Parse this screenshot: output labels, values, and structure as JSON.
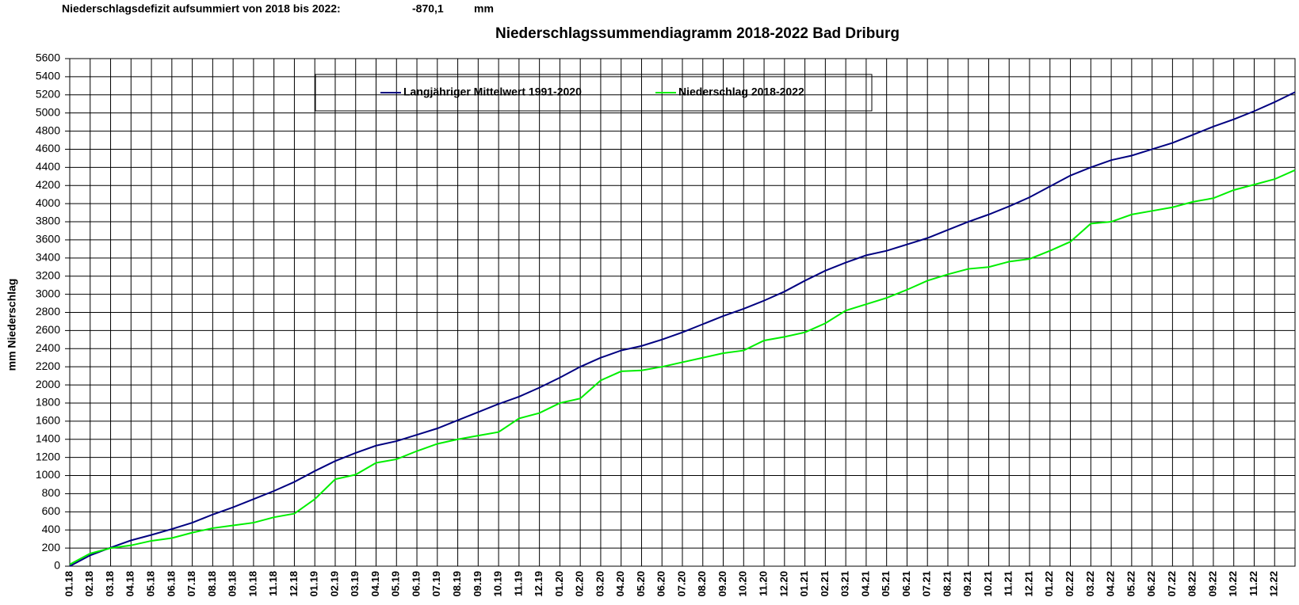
{
  "chart_data": {
    "type": "line",
    "note": {
      "text": "Niederschlagsdefizit aufsummiert von 2018 bis 2022:",
      "value": "-870,1",
      "unit": "mm"
    },
    "title": "Niederschlagssummendiagramm  2018-2022 Bad Driburg",
    "y_label": "mm Niederschlag",
    "categories": [
      "01.18",
      "02.18",
      "03.18",
      "04.18",
      "05.18",
      "06.18",
      "07.18",
      "08.18",
      "09.18",
      "10.18",
      "11.18",
      "12.18",
      "01.19",
      "02.19",
      "03.19",
      "04.19",
      "05.19",
      "06.19",
      "07.19",
      "08.19",
      "09.19",
      "10.19",
      "11.19",
      "12.19",
      "01.20",
      "02.20",
      "03.20",
      "04.20",
      "05.20",
      "06.20",
      "07.20",
      "08.20",
      "09.20",
      "10.20",
      "11.20",
      "12.20",
      "01.21",
      "02.21",
      "03.21",
      "04.21",
      "05.21",
      "06.21",
      "07.21",
      "08.21",
      "09.21",
      "10.21",
      "11.21",
      "12.21",
      "01.22",
      "02.22",
      "03.22",
      "04.22",
      "05.22",
      "06.22",
      "07.22",
      "08.22",
      "09.22",
      "10.22",
      "11.22",
      "12.22",
      null
    ],
    "series": [
      {
        "name": "Langjähriger Mittelwert 1991-2020",
        "color": "#000080",
        "values": [
          0,
          120,
          205,
          285,
          345,
          410,
          480,
          570,
          650,
          740,
          830,
          930,
          1050,
          1160,
          1250,
          1330,
          1380,
          1450,
          1520,
          1610,
          1700,
          1790,
          1870,
          1970,
          2080,
          2200,
          2300,
          2380,
          2430,
          2500,
          2580,
          2670,
          2760,
          2840,
          2930,
          3030,
          3150,
          3260,
          3350,
          3430,
          3480,
          3550,
          3620,
          3710,
          3800,
          3880,
          3970,
          4070,
          4190,
          4310,
          4400,
          4480,
          4530,
          4600,
          4670,
          4760,
          4850,
          4930,
          5020,
          5120,
          5230
        ]
      },
      {
        "name": "Niederschlag 2018-2022",
        "color": "#00ee00",
        "values": [
          20,
          140,
          200,
          230,
          280,
          310,
          370,
          420,
          450,
          480,
          540,
          580,
          740,
          960,
          1010,
          1140,
          1180,
          1270,
          1350,
          1400,
          1440,
          1480,
          1630,
          1690,
          1800,
          1850,
          2050,
          2150,
          2160,
          2200,
          2250,
          2300,
          2350,
          2380,
          2490,
          2530,
          2580,
          2680,
          2820,
          2890,
          2960,
          3050,
          3150,
          3220,
          3280,
          3300,
          3360,
          3390,
          3480,
          3580,
          3780,
          3800,
          3880,
          3920,
          3960,
          4020,
          4060,
          4150,
          4210,
          4270,
          4370
        ]
      }
    ],
    "ylim": [
      0,
      5600
    ],
    "yticks": [
      0,
      200,
      400,
      600,
      800,
      1000,
      1200,
      1400,
      1600,
      1800,
      2000,
      2200,
      2400,
      2600,
      2800,
      3000,
      3200,
      3400,
      3600,
      3800,
      4000,
      4200,
      4400,
      4600,
      4800,
      5000,
      5200,
      5400,
      5600
    ],
    "grid": true
  }
}
